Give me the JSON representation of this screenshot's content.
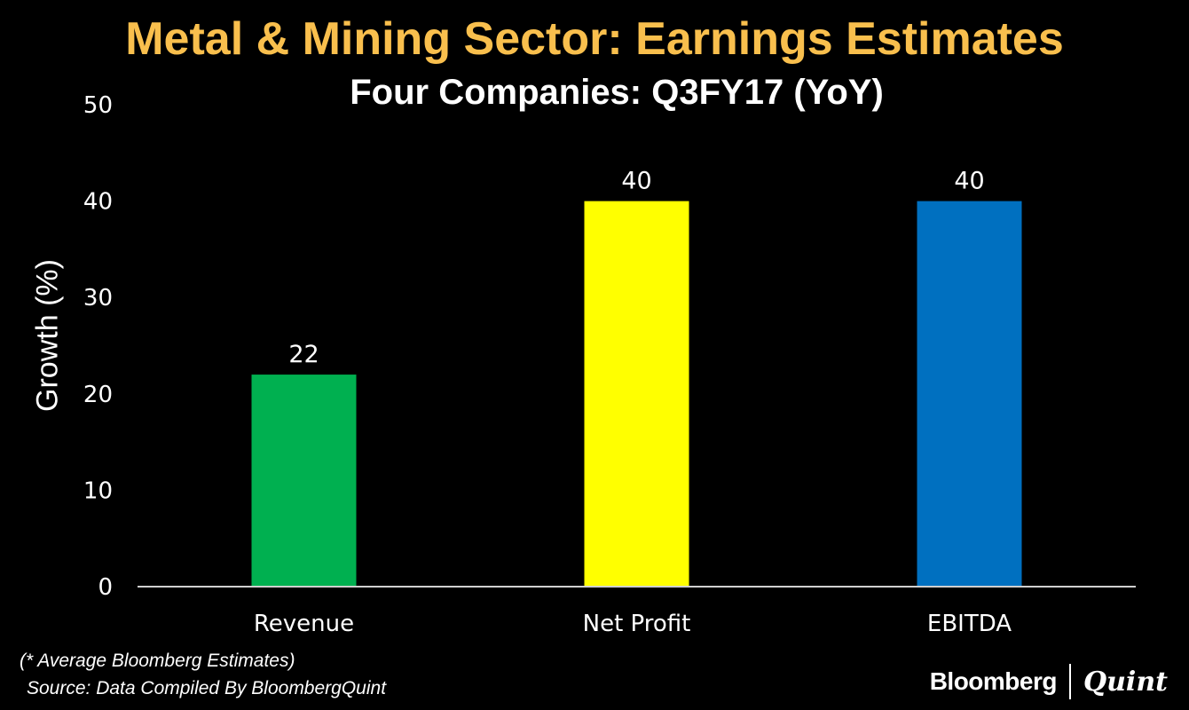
{
  "chart_data": {
    "type": "bar",
    "title": "Metal & Mining Sector: Earnings Estimates",
    "subtitle": "Four Companies: Q3FY17 (YoY)",
    "categories": [
      "Revenue",
      "Net Profit",
      "EBITDA"
    ],
    "values": [
      22,
      40,
      40
    ],
    "colors": [
      "#00b050",
      "#ffff00",
      "#0070c0"
    ],
    "xlabel": "",
    "ylabel": "Growth (%)",
    "ylim": [
      0,
      50
    ],
    "yticks": [
      0,
      10,
      20,
      30,
      40,
      50
    ],
    "grid": false,
    "data_labels": true
  },
  "footnotes": {
    "note": "(* Average Bloomberg Estimates)",
    "source": "Source: Data Compiled By BloombergQuint"
  },
  "branding": {
    "left": "Bloomberg",
    "right": "Quint"
  }
}
